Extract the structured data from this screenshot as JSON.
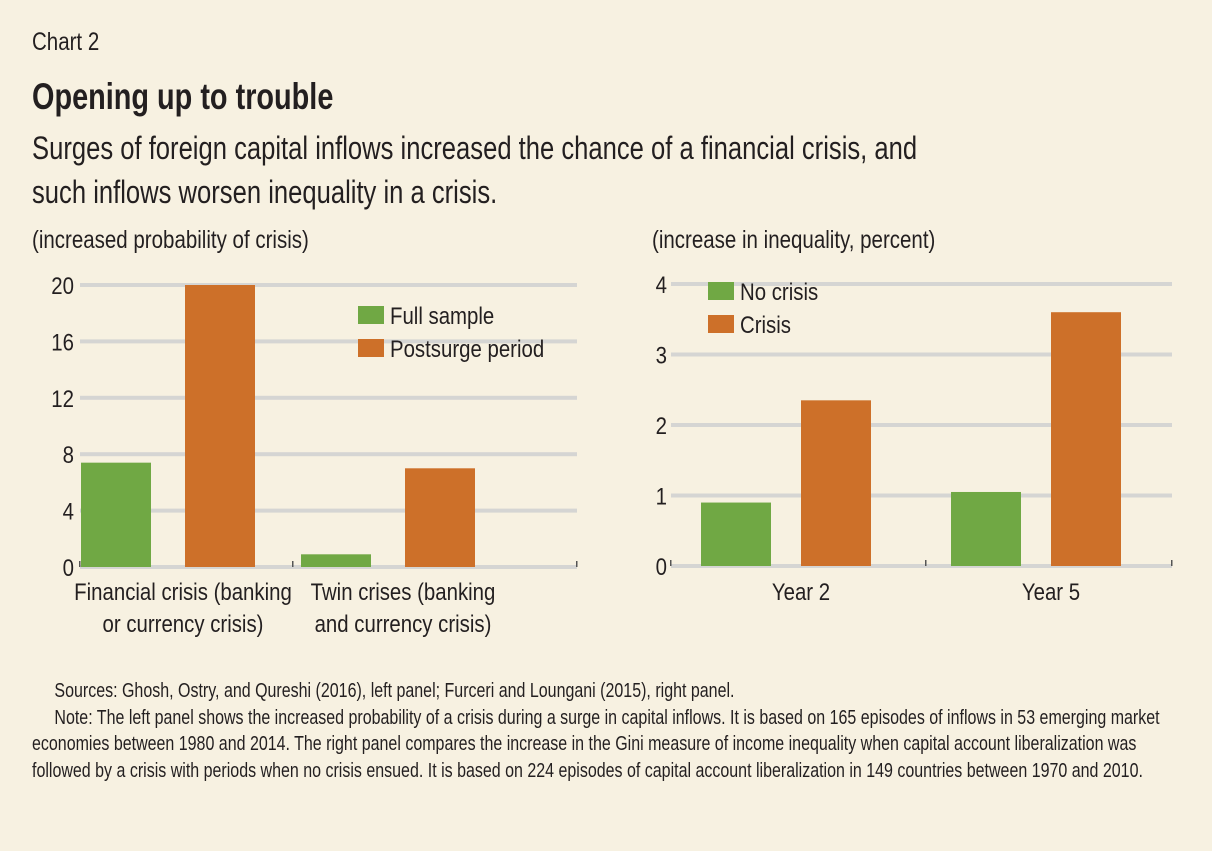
{
  "header": {
    "chart_label": "Chart 2",
    "title": "Opening up to trouble",
    "subtitle_line1": "Surges of foreign capital inflows increased the chance of a financial crisis, and",
    "subtitle_line2": "such inflows worsen inequality in a crisis."
  },
  "colors": {
    "green": "#70a844",
    "orange": "#cd7029",
    "grid": "#d5d5d3",
    "background": "#f7f1e1"
  },
  "chart_data": [
    {
      "type": "bar",
      "panel": "left",
      "title": "",
      "ylabel": "(increased probability of crisis)",
      "xlabel": "",
      "categories": [
        [
          "Financial crisis (banking",
          "or currency crisis)"
        ],
        [
          "Twin crises (banking",
          "and currency crisis)"
        ]
      ],
      "series": [
        {
          "name": "Full sample",
          "color": "#70a844",
          "values": [
            7.4,
            0.9
          ]
        },
        {
          "name": "Postsurge period",
          "color": "#cd7029",
          "values": [
            20.0,
            7.0
          ]
        }
      ],
      "ylim": [
        0,
        20
      ],
      "yticks": [
        0,
        4,
        8,
        12,
        16,
        20
      ],
      "grid": true,
      "legend": "top-right"
    },
    {
      "type": "bar",
      "panel": "right",
      "title": "",
      "ylabel": "(increase in inequality, percent)",
      "xlabel": "",
      "categories": [
        [
          "Year 2"
        ],
        [
          "Year 5"
        ]
      ],
      "series": [
        {
          "name": "No crisis",
          "color": "#70a844",
          "values": [
            0.9,
            1.05
          ]
        },
        {
          "name": "Crisis",
          "color": "#cd7029",
          "values": [
            2.35,
            3.6
          ]
        }
      ],
      "ylim": [
        0,
        4
      ],
      "yticks": [
        0,
        1,
        2,
        3,
        4
      ],
      "grid": true,
      "legend": "top-left"
    }
  ],
  "notes": {
    "sources": "Sources: Ghosh, Ostry, and Qureshi (2016), left panel; Furceri and Loungani (2015), right panel.",
    "note": "Note: The left panel shows the increased probability of a crisis during a surge in capital inflows. It is based on 165 episodes of inflows in 53 emerging market economies between 1980 and 2014. The right panel compares the increase in the Gini measure of income inequality when capital account liberalization was followed by a crisis with periods when no crisis ensued. It is based on 224 episodes of capital account liberalization in 149 countries between 1970 and 2010."
  }
}
